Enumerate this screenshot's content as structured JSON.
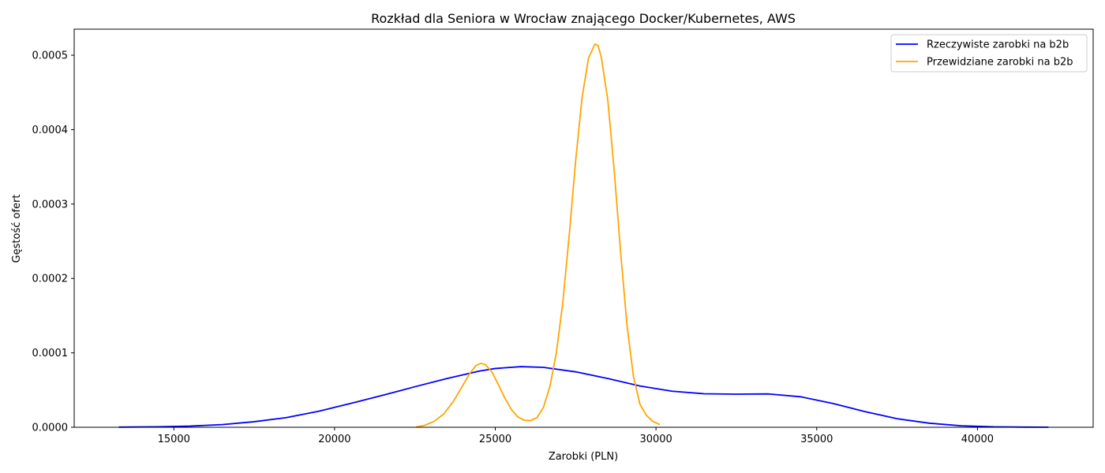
{
  "chart_data": {
    "type": "line",
    "title": "Rozkład dla Seniora w Wrocław znającego Docker/Kubernetes, AWS",
    "xlabel": "Zarobki (PLN)",
    "ylabel": "Gęstość ofert",
    "xlim": [
      11900,
      43600
    ],
    "ylim": [
      0,
      0.000535
    ],
    "xticks": [
      15000,
      20000,
      25000,
      30000,
      35000,
      40000
    ],
    "xtick_labels": [
      "15000",
      "20000",
      "25000",
      "30000",
      "35000",
      "40000"
    ],
    "yticks": [
      0,
      0.0001,
      0.0002,
      0.0003,
      0.0004,
      0.0005
    ],
    "ytick_labels": [
      "0.0000",
      "0.0001",
      "0.0002",
      "0.0003",
      "0.0004",
      "0.0005"
    ],
    "grid": false,
    "legend_position": "top-right",
    "series": [
      {
        "name": "Rzeczywiste zarobki na b2b",
        "color": "#0000ff",
        "x": [
          13300,
          14500,
          15500,
          16500,
          17500,
          18500,
          19500,
          20500,
          21500,
          22500,
          23500,
          24500,
          25000,
          25800,
          26500,
          27500,
          28500,
          29500,
          30500,
          31500,
          32500,
          33500,
          34500,
          35500,
          36500,
          37500,
          38500,
          39500,
          40500,
          41500,
          42200
        ],
        "y": [
          2e-07,
          6e-07,
          1.6e-06,
          3.6e-06,
          7.5e-06,
          1.3e-05,
          2.15e-05,
          3.2e-05,
          4.3e-05,
          5.45e-05,
          6.55e-05,
          7.55e-05,
          7.9e-05,
          8.15e-05,
          8.05e-05,
          7.45e-05,
          6.55e-05,
          5.55e-05,
          4.85e-05,
          4.5e-05,
          4.45e-05,
          4.48e-05,
          4.1e-05,
          3.2e-05,
          2.1e-05,
          1.15e-05,
          5.5e-06,
          2e-06,
          6e-07,
          2e-07,
          1e-07
        ]
      },
      {
        "name": "Przewidziane zarobki na b2b",
        "color": "#ffa500",
        "x": [
          22550,
          22800,
          23100,
          23400,
          23700,
          24000,
          24200,
          24400,
          24550,
          24700,
          24900,
          25100,
          25300,
          25500,
          25700,
          25900,
          26100,
          26300,
          26500,
          26700,
          26900,
          27100,
          27300,
          27500,
          27700,
          27900,
          28100,
          28200,
          28300,
          28500,
          28700,
          28900,
          29100,
          29300,
          29500,
          29700,
          29900,
          30100
        ],
        "y": [
          5e-07,
          2.5e-06,
          8e-06,
          1.8e-05,
          3.5e-05,
          5.7e-05,
          7.2e-05,
          8.3e-05,
          8.6e-05,
          8.4e-05,
          7.4e-05,
          5.7e-05,
          3.9e-05,
          2.4e-05,
          1.4e-05,
          9.5e-06,
          9e-06,
          1.3e-05,
          2.7e-05,
          5.5e-05,
          0.0001,
          0.000167,
          0.000258,
          0.000358,
          0.000443,
          0.000496,
          0.000515,
          0.000513,
          0.000497,
          0.00044,
          0.000345,
          0.000235,
          0.000136,
          6.8e-05,
          3.1e-05,
          1.6e-05,
          8e-06,
          4e-06
        ]
      }
    ]
  }
}
